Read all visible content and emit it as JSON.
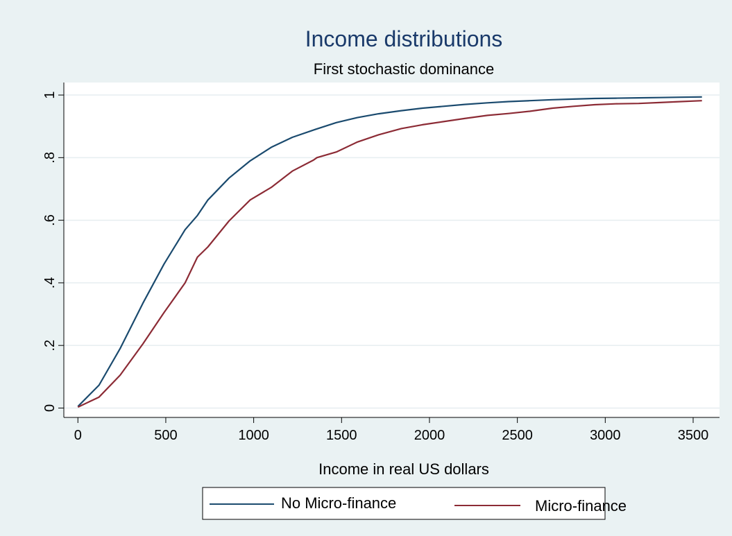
{
  "chart_data": {
    "type": "line",
    "title": "Income distributions",
    "subtitle": "First stochastic dominance",
    "xlabel": "Income in real US dollars",
    "ylabel": "",
    "xlim": [
      -80,
      3650
    ],
    "ylim": [
      -0.03,
      1.04
    ],
    "xticks": [
      0,
      500,
      1000,
      1500,
      2000,
      2500,
      3000,
      3500
    ],
    "xtick_labels": [
      "0",
      "500",
      "1000",
      "1500",
      "2000",
      "2500",
      "3000",
      "3500"
    ],
    "yticks": [
      0,
      0.2,
      0.4,
      0.6,
      0.8,
      1
    ],
    "ytick_labels": [
      "0",
      ".2",
      ".4",
      ".6",
      ".8",
      "1"
    ],
    "grid": true,
    "legend_position": "bottom",
    "series": [
      {
        "name": "No Micro-finance",
        "color": "#1a4a6e",
        "x": [
          0,
          120,
          240,
          370,
          490,
          610,
          680,
          740,
          860,
          980,
          1100,
          1220,
          1350,
          1470,
          1590,
          1710,
          1840,
          1960,
          2080,
          2200,
          2330,
          2450,
          2570,
          2700,
          2820,
          2940,
          3060,
          3190,
          3310,
          3430,
          3550
        ],
        "y": [
          0.005,
          0.073,
          0.19,
          0.335,
          0.46,
          0.57,
          0.615,
          0.665,
          0.735,
          0.79,
          0.833,
          0.865,
          0.89,
          0.912,
          0.928,
          0.94,
          0.95,
          0.958,
          0.964,
          0.97,
          0.975,
          0.979,
          0.982,
          0.985,
          0.987,
          0.989,
          0.99,
          0.991,
          0.992,
          0.993,
          0.994
        ]
      },
      {
        "name": "Micro-finance",
        "color": "#8c2b35",
        "x": [
          0,
          120,
          240,
          370,
          490,
          610,
          680,
          740,
          860,
          980,
          1100,
          1220,
          1340,
          1360,
          1470,
          1590,
          1710,
          1840,
          1960,
          2080,
          2200,
          2330,
          2450,
          2570,
          2700,
          2820,
          2940,
          3060,
          3190,
          3310,
          3430,
          3550
        ],
        "y": [
          0.003,
          0.035,
          0.105,
          0.205,
          0.305,
          0.4,
          0.482,
          0.515,
          0.598,
          0.665,
          0.705,
          0.757,
          0.792,
          0.8,
          0.818,
          0.85,
          0.873,
          0.893,
          0.905,
          0.915,
          0.925,
          0.935,
          0.941,
          0.948,
          0.958,
          0.964,
          0.969,
          0.972,
          0.973,
          0.976,
          0.979,
          0.982
        ]
      }
    ]
  }
}
